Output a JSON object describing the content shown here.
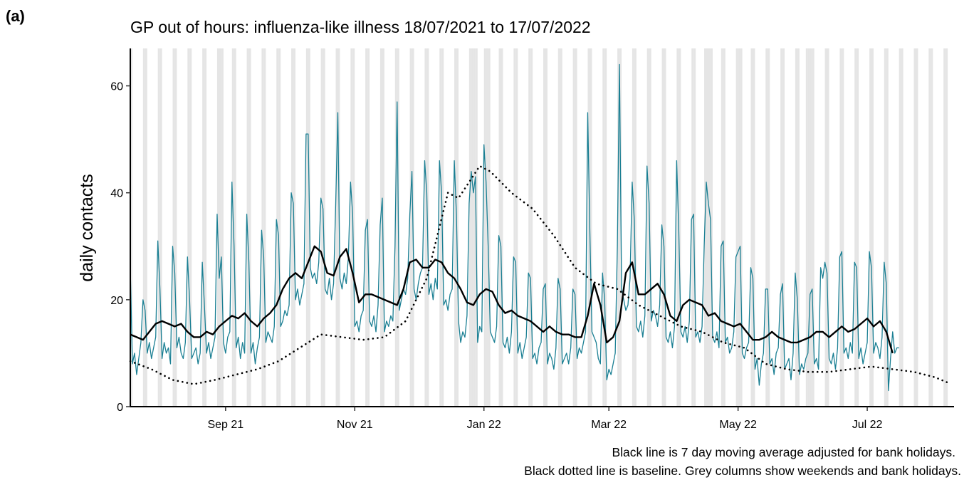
{
  "panel_label": "(a)",
  "chart_data": {
    "type": "line",
    "title": "GP out of hours: influenza-like illness 18/07/2021 to 17/07/2022",
    "ylabel": "daily contacts",
    "notes": [
      "Black line is 7 day moving average adjusted for bank holidays.",
      "Black dotted line is baseline. Grey columns show weekends and bank holidays."
    ],
    "xlim": [
      0,
      389
    ],
    "ylim": [
      0,
      67
    ],
    "xticks": [
      {
        "value": 45,
        "label": "Sep 21"
      },
      {
        "value": 106,
        "label": "Nov 21"
      },
      {
        "value": 167,
        "label": "Jan 22"
      },
      {
        "value": 226,
        "label": "Mar 22"
      },
      {
        "value": 287,
        "label": "May 22"
      },
      {
        "value": 348,
        "label": "Jul 22"
      }
    ],
    "yticks": [
      0,
      20,
      40,
      60
    ],
    "shade_color": "#e5e5e5",
    "shaded_days": [
      0,
      6,
      7,
      13,
      14,
      20,
      21,
      27,
      28,
      34,
      35,
      41,
      42,
      43,
      48,
      49,
      55,
      56,
      62,
      63,
      69,
      70,
      76,
      77,
      83,
      84,
      90,
      91,
      97,
      98,
      104,
      105,
      111,
      112,
      118,
      119,
      125,
      126,
      132,
      133,
      139,
      140,
      146,
      147,
      153,
      154,
      160,
      161,
      162,
      163,
      167,
      168,
      169,
      174,
      175,
      181,
      182,
      188,
      189,
      195,
      196,
      202,
      203,
      209,
      210,
      216,
      217,
      223,
      224,
      230,
      231,
      237,
      238,
      244,
      245,
      251,
      252,
      258,
      259,
      265,
      266,
      271,
      272,
      273,
      274,
      279,
      280,
      286,
      287,
      288,
      293,
      294,
      300,
      301,
      307,
      308,
      314,
      315,
      319,
      320,
      321,
      322,
      328,
      329,
      335,
      336,
      342,
      343,
      349,
      350,
      356,
      357,
      363,
      364,
      370,
      371,
      377,
      378,
      384,
      385
    ],
    "series": [
      {
        "color": "#1a7f93",
        "style": "solid",
        "width": 1.3,
        "x": [
          0,
          1,
          2,
          3,
          4,
          5,
          6,
          7,
          8,
          9,
          10,
          11,
          12,
          13,
          14,
          15,
          16,
          17,
          18,
          19,
          20,
          21,
          22,
          23,
          24,
          25,
          26,
          27,
          28,
          29,
          30,
          31,
          32,
          33,
          34,
          35,
          36,
          37,
          38,
          39,
          40,
          41,
          42,
          43,
          44,
          45,
          46,
          47,
          48,
          49,
          50,
          51,
          52,
          53,
          54,
          55,
          56,
          57,
          58,
          59,
          60,
          61,
          62,
          63,
          64,
          65,
          66,
          67,
          68,
          69,
          70,
          71,
          72,
          73,
          74,
          75,
          76,
          77,
          78,
          79,
          80,
          81,
          82,
          83,
          84,
          85,
          86,
          87,
          88,
          89,
          90,
          91,
          92,
          93,
          94,
          95,
          96,
          97,
          98,
          99,
          100,
          101,
          102,
          103,
          104,
          105,
          106,
          107,
          108,
          109,
          110,
          111,
          112,
          113,
          114,
          115,
          116,
          117,
          118,
          119,
          120,
          121,
          122,
          123,
          124,
          125,
          126,
          127,
          128,
          129,
          130,
          131,
          132,
          133,
          134,
          135,
          136,
          137,
          138,
          139,
          140,
          141,
          142,
          143,
          144,
          145,
          146,
          147,
          148,
          149,
          150,
          151,
          152,
          153,
          154,
          155,
          156,
          157,
          158,
          159,
          160,
          161,
          162,
          163,
          164,
          165,
          166,
          167,
          168,
          169,
          170,
          171,
          172,
          173,
          174,
          175,
          176,
          177,
          178,
          179,
          180,
          181,
          182,
          183,
          184,
          185,
          186,
          187,
          188,
          189,
          190,
          191,
          192,
          193,
          194,
          195,
          196,
          197,
          198,
          199,
          200,
          201,
          202,
          203,
          204,
          205,
          206,
          207,
          208,
          209,
          210,
          211,
          212,
          213,
          214,
          215,
          216,
          217,
          218,
          219,
          220,
          221,
          222,
          223,
          224,
          225,
          226,
          227,
          228,
          229,
          230,
          231,
          232,
          233,
          234,
          235,
          236,
          237,
          238,
          239,
          240,
          241,
          242,
          243,
          244,
          245,
          246,
          247,
          248,
          249,
          250,
          251,
          252,
          253,
          254,
          255,
          256,
          257,
          258,
          259,
          260,
          261,
          262,
          263,
          264,
          265,
          266,
          267,
          268,
          269,
          270,
          271,
          272,
          273,
          274,
          275,
          276,
          277,
          278,
          279,
          280,
          281,
          282,
          283,
          284,
          285,
          286,
          287,
          288,
          289,
          290,
          291,
          292,
          293,
          294,
          295,
          296,
          297,
          298,
          299,
          300,
          301,
          302,
          303,
          304,
          305,
          306,
          307,
          308,
          309,
          310,
          311,
          312,
          313,
          314,
          315,
          316,
          317,
          318,
          319,
          320,
          321,
          322,
          323,
          324,
          325,
          326,
          327,
          328,
          329,
          330,
          331,
          332,
          333,
          334,
          335,
          336,
          337,
          338,
          339,
          340,
          341,
          342,
          343,
          344,
          345,
          346,
          347,
          348,
          349,
          350,
          351,
          352,
          353,
          354,
          355,
          356,
          357,
          358,
          359,
          360,
          361,
          362,
          363
        ],
        "values": [
          26,
          8,
          10,
          6,
          9,
          12,
          20,
          18,
          10,
          12,
          9,
          11,
          13,
          31,
          22,
          9,
          12,
          10,
          11,
          8,
          30,
          25,
          11,
          13,
          10,
          9,
          12,
          28,
          20,
          9,
          10,
          11,
          8,
          10,
          27,
          19,
          10,
          12,
          9,
          11,
          13,
          36,
          24,
          28,
          12,
          10,
          13,
          14,
          42,
          30,
          11,
          13,
          9,
          12,
          10,
          36,
          27,
          10,
          12,
          8,
          11,
          13,
          33,
          28,
          12,
          14,
          13,
          12,
          15,
          35,
          32,
          15,
          16,
          18,
          17,
          19,
          40,
          38,
          20,
          22,
          19,
          21,
          23,
          51,
          51,
          26,
          24,
          25,
          23,
          27,
          39,
          37,
          22,
          21,
          24,
          20,
          23,
          38,
          55,
          24,
          22,
          25,
          23,
          28,
          42,
          36,
          15,
          16,
          14,
          17,
          18,
          33,
          35,
          16,
          15,
          17,
          14,
          19,
          34,
          39,
          14,
          16,
          15,
          17,
          16,
          30,
          57,
          18,
          20,
          22,
          21,
          24,
          36,
          44,
          22,
          20,
          23,
          25,
          26,
          46,
          40,
          21,
          23,
          20,
          24,
          22,
          46,
          40,
          19,
          20,
          18,
          21,
          22,
          46,
          36,
          16,
          12,
          14,
          13,
          17,
          38,
          44,
          40,
          43,
          12,
          15,
          14,
          49,
          42,
          30,
          14,
          13,
          12,
          15,
          32,
          30,
          12,
          11,
          13,
          10,
          14,
          28,
          27,
          10,
          12,
          9,
          11,
          13,
          25,
          24,
          9,
          10,
          8,
          11,
          12,
          22,
          23,
          8,
          10,
          9,
          7,
          11,
          24,
          22,
          8,
          9,
          10,
          8,
          11,
          22,
          21,
          9,
          11,
          10,
          12,
          14,
          55,
          33,
          14,
          13,
          12,
          9,
          8,
          25,
          20,
          5,
          7,
          6,
          8,
          10,
          30,
          64,
          22,
          20,
          18,
          19,
          24,
          42,
          35,
          15,
          14,
          16,
          13,
          17,
          45,
          38,
          16,
          18,
          17,
          15,
          19,
          34,
          30,
          13,
          12,
          14,
          11,
          15,
          46,
          33,
          14,
          13,
          15,
          12,
          16,
          35,
          36,
          13,
          14,
          12,
          15,
          30,
          42,
          38,
          35,
          13,
          12,
          14,
          11,
          30,
          31,
          12,
          13,
          10,
          11,
          14,
          28,
          29,
          30,
          10,
          9,
          11,
          12,
          26,
          24,
          7,
          9,
          4,
          8,
          10,
          22,
          22,
          8,
          9,
          6,
          10,
          11,
          21,
          23,
          7,
          8,
          9,
          5,
          10,
          25,
          20,
          6,
          8,
          7,
          9,
          10,
          21,
          22,
          8,
          9,
          7,
          26,
          24,
          27,
          25,
          9,
          8,
          10,
          7,
          11,
          28,
          29,
          10,
          11,
          9,
          12,
          10,
          27,
          26,
          9,
          11,
          8,
          10,
          12,
          29,
          26,
          10,
          12,
          11,
          9,
          13,
          27,
          23,
          3,
          9,
          14,
          10,
          11,
          11
        ]
      },
      {
        "color": "#000000",
        "style": "solid",
        "width": 2.4,
        "x": [
          0,
          3,
          6,
          9,
          12,
          15,
          18,
          21,
          24,
          27,
          30,
          33,
          36,
          39,
          42,
          45,
          48,
          51,
          54,
          57,
          60,
          63,
          66,
          69,
          72,
          75,
          78,
          81,
          84,
          87,
          90,
          93,
          96,
          99,
          102,
          105,
          108,
          111,
          114,
          117,
          120,
          123,
          126,
          129,
          132,
          135,
          138,
          141,
          144,
          147,
          150,
          153,
          156,
          159,
          162,
          165,
          168,
          171,
          174,
          177,
          180,
          183,
          186,
          189,
          192,
          195,
          198,
          201,
          204,
          207,
          210,
          213,
          216,
          219,
          222,
          225,
          228,
          231,
          234,
          237,
          240,
          243,
          246,
          249,
          252,
          255,
          258,
          261,
          264,
          267,
          270,
          273,
          276,
          279,
          282,
          285,
          288,
          291,
          294,
          297,
          300,
          303,
          306,
          309,
          312,
          315,
          318,
          321,
          324,
          327,
          330,
          333,
          336,
          339,
          342,
          345,
          348,
          351,
          354,
          357,
          360
        ],
        "values": [
          13.5,
          13,
          12.5,
          14,
          15.5,
          16,
          15.5,
          15,
          15.5,
          14,
          13,
          13,
          14,
          13.5,
          15,
          16,
          17,
          16.5,
          17.5,
          16,
          15,
          16.5,
          17.5,
          19,
          22,
          24,
          25,
          24,
          27,
          30,
          29,
          25,
          24.5,
          28,
          29.5,
          25,
          19.5,
          21,
          21,
          20.5,
          20,
          19.5,
          19,
          22,
          27,
          27.5,
          26,
          26,
          27.5,
          27,
          25,
          24,
          22,
          19.5,
          19,
          21,
          22,
          21.5,
          19,
          17.5,
          18,
          17,
          16.5,
          16,
          15,
          14,
          15,
          14,
          13.5,
          13.5,
          13,
          13,
          17,
          23,
          19,
          12,
          13,
          16,
          25,
          27,
          21,
          21,
          22,
          23,
          21,
          17,
          16,
          19,
          20,
          19.5,
          19,
          17,
          17.5,
          16,
          15.5,
          15,
          15.5,
          14,
          12.5,
          12.5,
          13,
          14,
          13,
          12.5,
          12,
          12,
          12.5,
          13,
          14,
          14,
          13,
          14,
          15,
          14,
          14.5,
          15.5,
          16.5,
          15,
          16,
          14,
          10
        ]
      },
      {
        "color": "#000000",
        "style": "dotted",
        "width": 2.6,
        "x": [
          0,
          10,
          20,
          30,
          40,
          50,
          60,
          70,
          80,
          90,
          100,
          110,
          120,
          130,
          140,
          145,
          150,
          155,
          160,
          165,
          170,
          180,
          190,
          200,
          210,
          220,
          230,
          240,
          250,
          260,
          270,
          280,
          290,
          300,
          310,
          320,
          330,
          340,
          350,
          360,
          370,
          380,
          386
        ],
        "values": [
          8.5,
          7,
          5,
          4.2,
          5,
          6,
          7,
          8.5,
          11,
          13.5,
          13,
          12.5,
          13,
          16,
          24,
          32,
          40,
          39,
          42,
          45,
          44,
          40,
          37,
          32,
          26,
          23,
          22,
          19,
          17,
          15,
          14,
          12,
          11,
          8,
          7,
          6.5,
          6.5,
          7,
          7.5,
          7,
          6.5,
          5.5,
          4.5
        ]
      }
    ]
  }
}
